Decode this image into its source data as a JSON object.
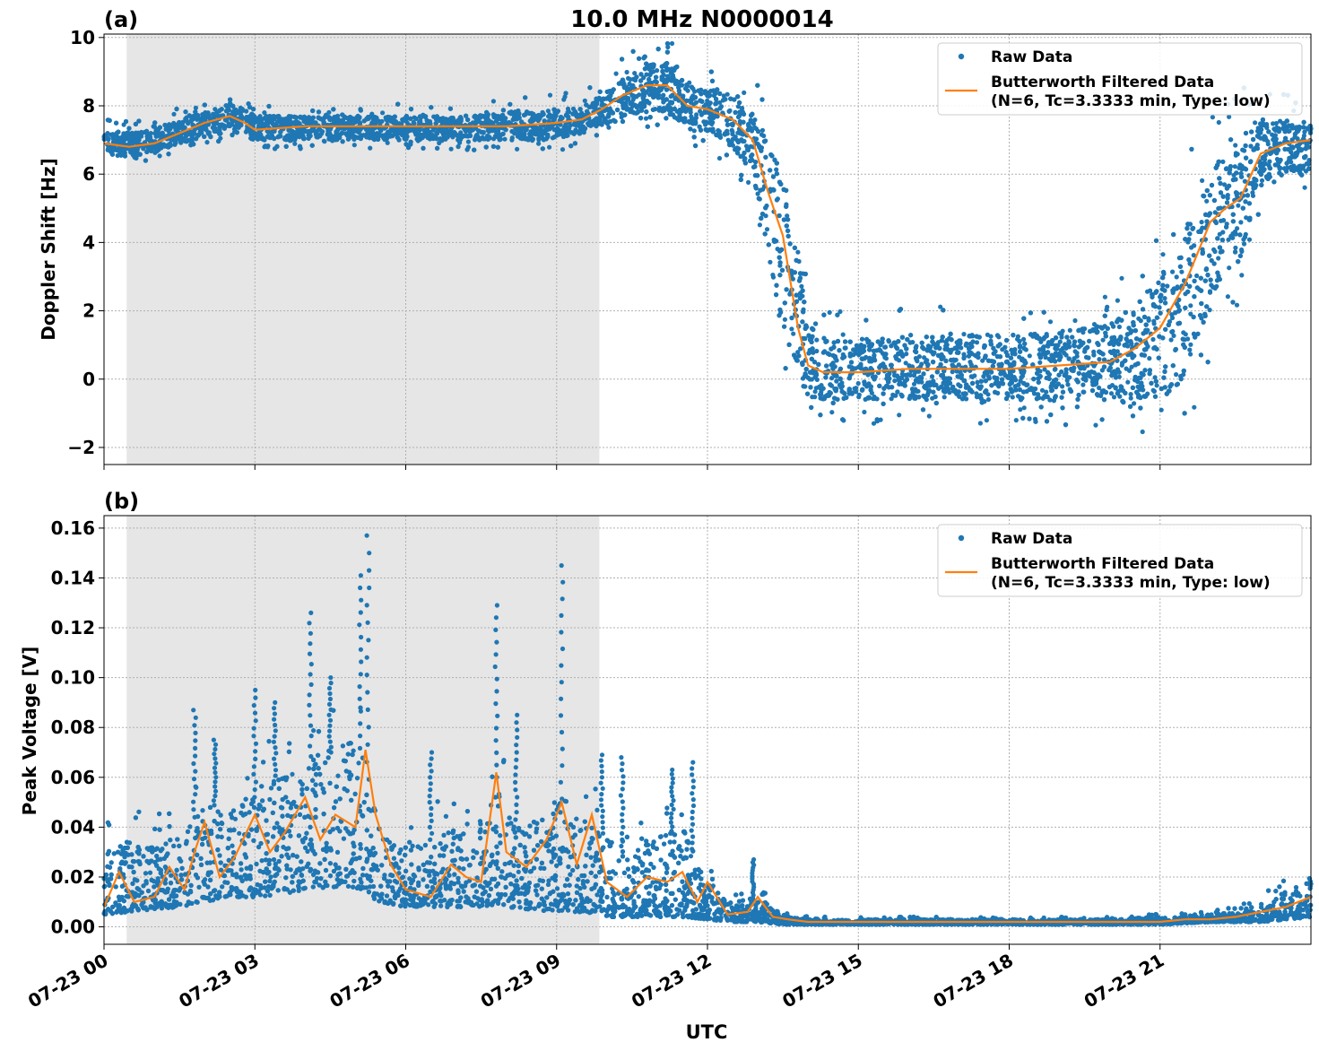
{
  "figure": {
    "title": "10.0 MHz N0000014",
    "xlabel": "UTC",
    "x_tick_labels": [
      "07-23 00",
      "07-23 03",
      "07-23 06",
      "07-23 09",
      "07-23 12",
      "07-23 15",
      "07-23 18",
      "07-23 21"
    ],
    "colors": {
      "raw": "#1f77b4",
      "filtered": "#ff7f0e",
      "shade": "#e6e6e6",
      "grid": "#b0b0b0"
    }
  },
  "chart_data": [
    {
      "panel": "(a)",
      "type": "scatter",
      "title": "10.0 MHz N0000014",
      "xlabel": "",
      "ylabel": "Doppler Shift [Hz]",
      "xlim": [
        0,
        24
      ],
      "ylim": [
        -2.5,
        10.1
      ],
      "y_ticks": [
        "10",
        "8",
        "6",
        "4",
        "2",
        "0",
        "−2"
      ],
      "y_tick_values": [
        10,
        8,
        6,
        4,
        2,
        0,
        -2
      ],
      "grid": true,
      "shaded_region_hours": [
        0.45,
        9.85
      ],
      "legend_position": "upper right",
      "legend": [
        "Raw Data",
        "Butterworth Filtered Data\n(N=6, Tc=3.3333 min, Type: low)"
      ],
      "series": [
        {
          "name": "Raw Data",
          "style": "points",
          "envelope": {
            "x": [
              0,
              0.5,
              1,
              1.5,
              2,
              2.5,
              2.8,
              3,
              4,
              5,
              6,
              7,
              8,
              9,
              9.5,
              9.9,
              10.3,
              10.8,
              11.2,
              11.6,
              12,
              12.5,
              12.9,
              13.2,
              13.5,
              13.8,
              14.0,
              14.3,
              15,
              16,
              17,
              18,
              19,
              20,
              20.5,
              21,
              21.5,
              22,
              22.3,
              22.6,
              23,
              23.5,
              24
            ],
            "low": [
              6.6,
              6.5,
              6.6,
              6.9,
              7.1,
              7.3,
              7.1,
              7.0,
              7.0,
              7.0,
              7.0,
              7.0,
              7.0,
              7.0,
              7.2,
              7.4,
              7.6,
              7.9,
              7.8,
              7.3,
              7.2,
              6.8,
              6.0,
              3.5,
              1.2,
              0.1,
              -0.5,
              -0.6,
              -0.6,
              -0.6,
              -0.6,
              -0.6,
              -0.6,
              -0.6,
              -0.6,
              -0.6,
              0.0,
              2.2,
              3.0,
              3.5,
              5.8,
              6.0,
              6.0
            ],
            "high": [
              7.3,
              7.2,
              7.3,
              7.6,
              7.8,
              8.1,
              7.9,
              7.7,
              7.7,
              7.7,
              7.7,
              7.7,
              7.8,
              7.9,
              8.0,
              8.3,
              8.8,
              9.2,
              9.3,
              8.6,
              8.5,
              8.3,
              7.8,
              7.2,
              6.2,
              3.8,
              1.6,
              1.2,
              1.2,
              1.2,
              1.3,
              1.3,
              1.4,
              1.6,
              2.2,
              3.0,
              4.5,
              6.2,
              6.8,
              7.0,
              7.5,
              7.6,
              7.5
            ]
          }
        },
        {
          "name": "Butterworth Filtered Data\n(N=6, Tc=3.3333 min, Type: low)",
          "style": "line",
          "x": [
            0,
            0.5,
            1,
            1.5,
            2,
            2.5,
            2.8,
            3,
            4,
            5,
            6,
            7,
            8,
            9,
            9.5,
            9.9,
            10.3,
            10.8,
            11.2,
            11.6,
            12,
            12.5,
            12.9,
            13.2,
            13.5,
            13.8,
            14.0,
            14.3,
            15,
            16,
            17,
            18,
            19,
            20,
            20.5,
            21,
            21.5,
            22,
            22.3,
            22.6,
            23,
            23.5,
            24
          ],
          "y": [
            6.9,
            6.8,
            6.9,
            7.2,
            7.5,
            7.7,
            7.5,
            7.3,
            7.4,
            7.4,
            7.4,
            7.4,
            7.4,
            7.5,
            7.6,
            7.9,
            8.3,
            8.6,
            8.6,
            8.0,
            7.9,
            7.6,
            7.0,
            5.5,
            4.2,
            1.5,
            0.4,
            0.2,
            0.2,
            0.3,
            0.3,
            0.3,
            0.4,
            0.5,
            0.9,
            1.5,
            2.8,
            4.6,
            5.0,
            5.3,
            6.6,
            6.9,
            7.0
          ]
        }
      ]
    },
    {
      "panel": "(b)",
      "type": "scatter",
      "title": "",
      "xlabel": "UTC",
      "ylabel": "Peak Voltage [V]",
      "xlim": [
        0,
        24
      ],
      "ylim": [
        -0.007,
        0.165
      ],
      "y_ticks": [
        "0.16",
        "0.14",
        "0.12",
        "0.10",
        "0.08",
        "0.06",
        "0.04",
        "0.02",
        "0.00"
      ],
      "y_tick_values": [
        0.16,
        0.14,
        0.12,
        0.1,
        0.08,
        0.06,
        0.04,
        0.02,
        0.0
      ],
      "grid": true,
      "shaded_region_hours": [
        0.45,
        9.85
      ],
      "legend_position": "upper right",
      "legend": [
        "Raw Data",
        "Butterworth Filtered Data\n(N=6, Tc=3.3333 min, Type: low)"
      ],
      "series": [
        {
          "name": "Raw Data",
          "style": "points",
          "envelope": {
            "x": [
              0,
              0.5,
              1,
              1.5,
              2,
              2.5,
              3,
              3.5,
              4,
              4.5,
              5,
              5.3,
              5.5,
              6,
              6.5,
              7,
              7.5,
              7.8,
              8,
              8.5,
              9,
              9.3,
              9.6,
              10,
              10.5,
              11,
              11.5,
              12,
              12.5,
              13,
              13.5,
              14,
              15,
              16,
              17,
              18,
              19,
              20,
              21,
              22,
              22.5,
              23,
              23.5,
              24
            ],
            "low": [
              0.005,
              0.006,
              0.007,
              0.008,
              0.01,
              0.012,
              0.012,
              0.013,
              0.015,
              0.016,
              0.016,
              0.012,
              0.01,
              0.008,
              0.008,
              0.008,
              0.008,
              0.009,
              0.008,
              0.007,
              0.006,
              0.006,
              0.006,
              0.004,
              0.004,
              0.004,
              0.004,
              0.003,
              0.002,
              0.002,
              0.001,
              0.001,
              0.001,
              0.001,
              0.001,
              0.001,
              0.001,
              0.001,
              0.001,
              0.002,
              0.002,
              0.002,
              0.003,
              0.004
            ],
            "high": [
              0.03,
              0.035,
              0.032,
              0.038,
              0.048,
              0.05,
              0.052,
              0.06,
              0.068,
              0.07,
              0.08,
              0.055,
              0.038,
              0.032,
              0.035,
              0.04,
              0.046,
              0.06,
              0.045,
              0.04,
              0.052,
              0.05,
              0.042,
              0.036,
              0.03,
              0.036,
              0.04,
              0.018,
              0.01,
              0.012,
              0.005,
              0.003,
              0.003,
              0.003,
              0.003,
              0.003,
              0.003,
              0.003,
              0.004,
              0.005,
              0.006,
              0.009,
              0.014,
              0.02
            ]
          },
          "spikes": [
            {
              "x": 1.8,
              "y": 0.087
            },
            {
              "x": 2.2,
              "y": 0.075
            },
            {
              "x": 3.0,
              "y": 0.095
            },
            {
              "x": 3.4,
              "y": 0.09
            },
            {
              "x": 4.1,
              "y": 0.126
            },
            {
              "x": 4.5,
              "y": 0.1
            },
            {
              "x": 5.1,
              "y": 0.141
            },
            {
              "x": 5.25,
              "y": 0.157
            },
            {
              "x": 6.5,
              "y": 0.07
            },
            {
              "x": 7.8,
              "y": 0.129
            },
            {
              "x": 8.2,
              "y": 0.085
            },
            {
              "x": 9.1,
              "y": 0.145
            },
            {
              "x": 9.9,
              "y": 0.069
            },
            {
              "x": 10.3,
              "y": 0.068
            },
            {
              "x": 11.3,
              "y": 0.063
            },
            {
              "x": 11.7,
              "y": 0.066
            },
            {
              "x": 12.9,
              "y": 0.027
            }
          ]
        },
        {
          "name": "Butterworth Filtered Data\n(N=6, Tc=3.3333 min, Type: low)",
          "style": "line",
          "x": [
            0,
            0.3,
            0.6,
            1,
            1.3,
            1.6,
            1.8,
            2.0,
            2.3,
            2.6,
            3.0,
            3.3,
            3.6,
            4.0,
            4.3,
            4.6,
            5.0,
            5.2,
            5.4,
            5.7,
            6.0,
            6.5,
            6.9,
            7.2,
            7.5,
            7.8,
            8.0,
            8.4,
            8.8,
            9.1,
            9.4,
            9.7,
            10.0,
            10.4,
            10.8,
            11.2,
            11.5,
            11.8,
            12.0,
            12.4,
            12.8,
            13.0,
            13.3,
            13.6,
            14,
            15,
            16,
            17,
            18,
            19,
            20,
            21,
            21.5,
            22,
            22.5,
            23,
            23.5,
            24
          ],
          "y": [
            0.008,
            0.022,
            0.01,
            0.012,
            0.024,
            0.015,
            0.03,
            0.042,
            0.02,
            0.028,
            0.045,
            0.03,
            0.038,
            0.052,
            0.035,
            0.045,
            0.04,
            0.071,
            0.045,
            0.025,
            0.015,
            0.012,
            0.025,
            0.02,
            0.018,
            0.062,
            0.03,
            0.024,
            0.035,
            0.05,
            0.025,
            0.045,
            0.018,
            0.012,
            0.02,
            0.018,
            0.022,
            0.01,
            0.018,
            0.005,
            0.006,
            0.012,
            0.004,
            0.003,
            0.002,
            0.002,
            0.002,
            0.002,
            0.002,
            0.002,
            0.002,
            0.002,
            0.003,
            0.003,
            0.004,
            0.006,
            0.008,
            0.012
          ]
        }
      ]
    }
  ]
}
